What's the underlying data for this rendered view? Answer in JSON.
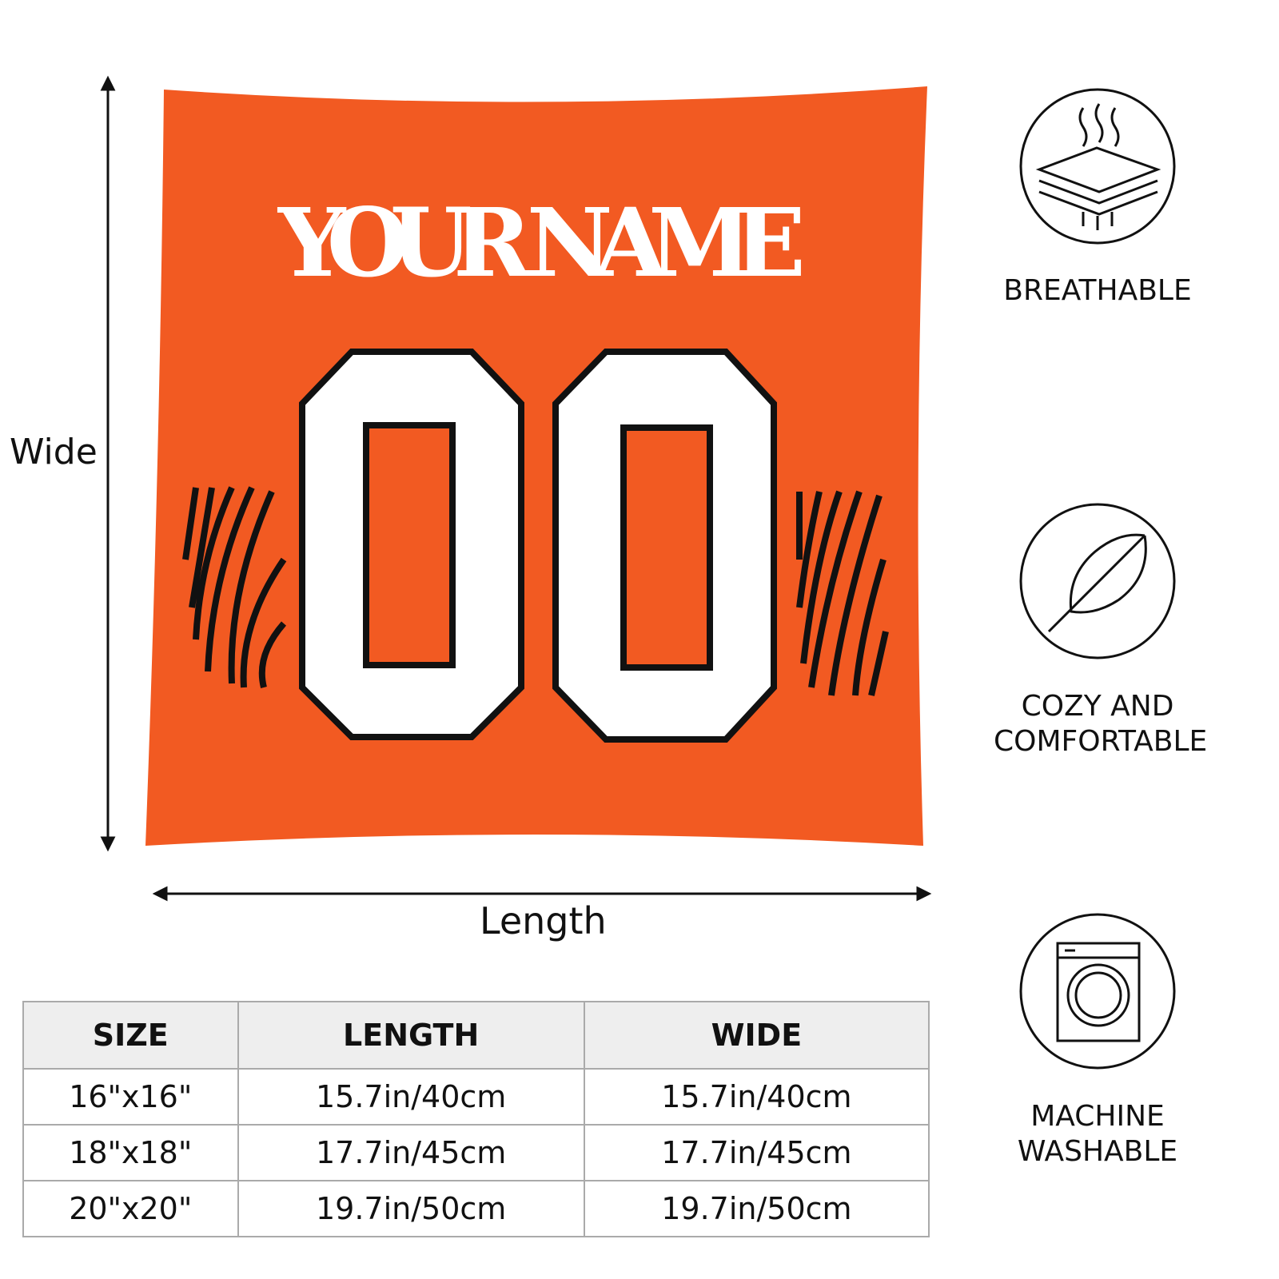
{
  "pillow": {
    "name_text": "YOUR NAME",
    "number_text": "00",
    "colors": {
      "fabric": "#f25a22",
      "text": "#ffffff",
      "outline": "#111111"
    }
  },
  "dimensions": {
    "wide_label": "Wide",
    "length_label": "Length"
  },
  "size_table": {
    "headers": [
      "SIZE",
      "LENGTH",
      "WIDE"
    ],
    "rows": [
      [
        "16\"x16\"",
        "15.7in/40cm",
        "15.7in/40cm"
      ],
      [
        "18\"x18\"",
        "17.7in/45cm",
        "17.7in/45cm"
      ],
      [
        "20\"x20\"",
        "19.7in/50cm",
        "19.7in/50cm"
      ]
    ]
  },
  "features": [
    {
      "icon": "breathable-layers-icon",
      "label": "BREATHABLE"
    },
    {
      "icon": "feather-icon",
      "label": "COZY AND COMFORTABLE"
    },
    {
      "icon": "washing-machine-icon",
      "label": "MACHINE WASHABLE"
    }
  ]
}
